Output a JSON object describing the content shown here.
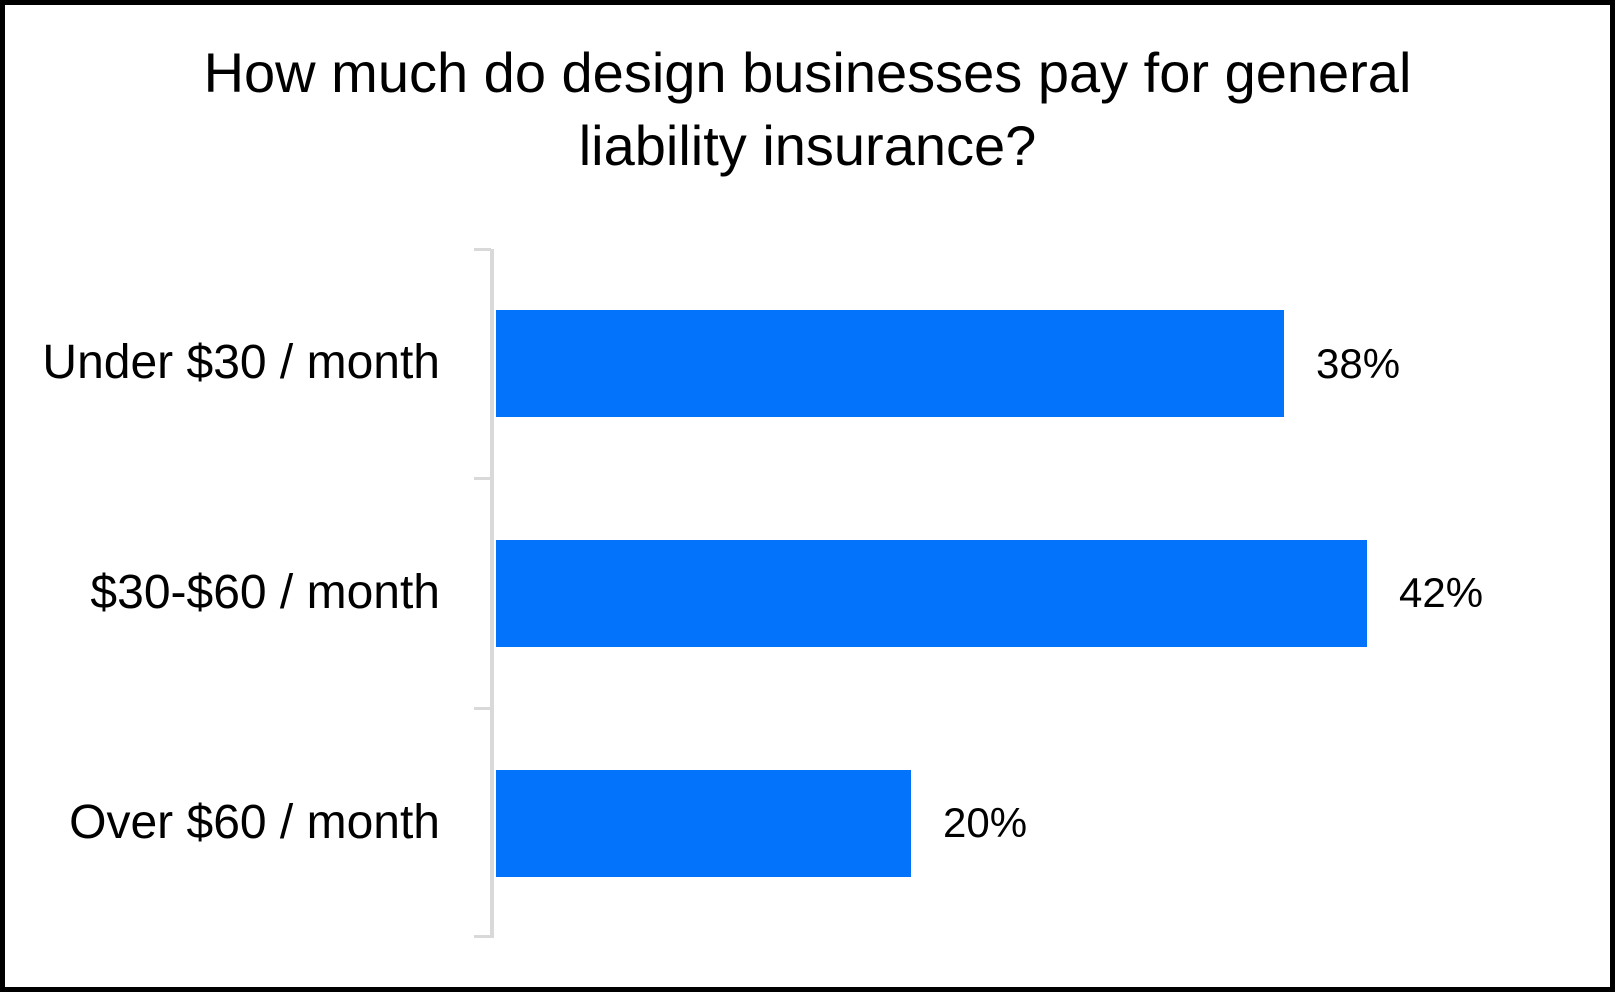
{
  "header": {
    "title_line1": "How much do design businesses pay for general",
    "title_line2": "liability insurance?"
  },
  "colors": {
    "bar": "#0473FB",
    "axis": "#D9D9D9",
    "text": "#000000",
    "border": "#000000",
    "background": "#FFFFFF"
  },
  "chart_data": {
    "type": "bar",
    "orientation": "horizontal",
    "title": "How much do design businesses pay for general liability insurance?",
    "categories": [
      "Under $30 / month",
      "$30-$60 / month",
      "Over $60 / month"
    ],
    "values": [
      38,
      42,
      20
    ],
    "value_labels": [
      "38%",
      "42%",
      "20%"
    ],
    "unit": "percent",
    "xlabel": "",
    "ylabel": "",
    "xlim": [
      0,
      51
    ],
    "grid": false,
    "legend": false,
    "data_label_position": "outside-end",
    "axis_ticks": "category-boundaries"
  }
}
